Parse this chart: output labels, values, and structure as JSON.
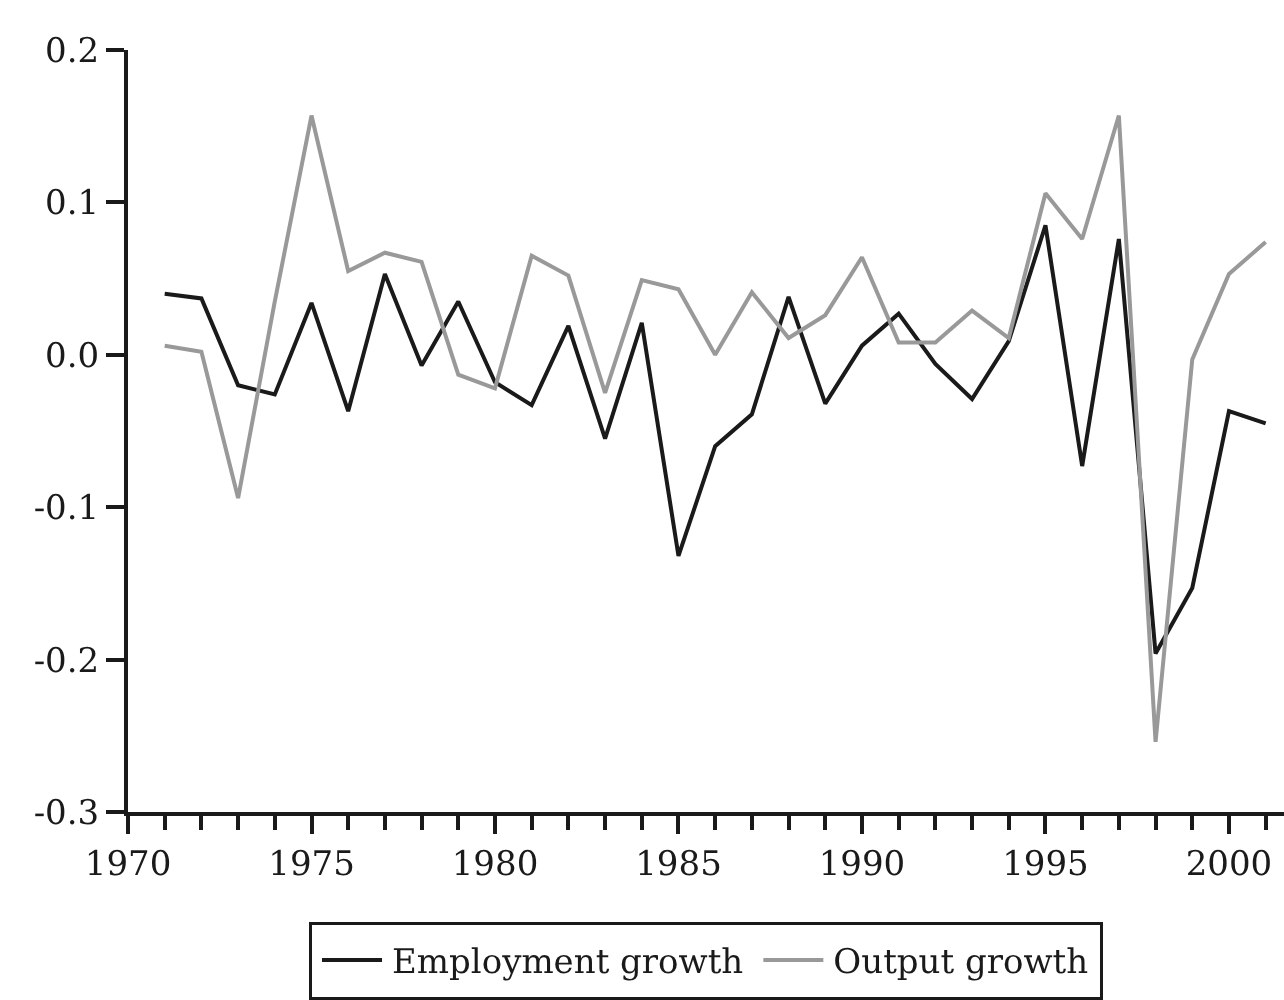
{
  "chart_data": {
    "type": "line",
    "x": [
      1971,
      1972,
      1973,
      1974,
      1975,
      1976,
      1977,
      1978,
      1979,
      1980,
      1981,
      1982,
      1983,
      1984,
      1985,
      1986,
      1987,
      1988,
      1989,
      1990,
      1991,
      1992,
      1993,
      1994,
      1995,
      1996,
      1997,
      1998,
      1999,
      2000,
      2001
    ],
    "series": [
      {
        "name": "Employment growth",
        "color": "#1a1a1a",
        "values": [
          0.04,
          0.037,
          -0.02,
          -0.026,
          0.034,
          -0.037,
          0.053,
          -0.007,
          0.035,
          -0.018,
          -0.033,
          0.019,
          -0.055,
          0.021,
          -0.132,
          -0.06,
          -0.039,
          0.038,
          -0.032,
          0.006,
          0.027,
          -0.006,
          -0.029,
          0.009,
          0.085,
          -0.073,
          0.076,
          -0.196,
          -0.153,
          -0.037,
          -0.045
        ]
      },
      {
        "name": "Output growth",
        "color": "#999999",
        "values": [
          0.006,
          0.002,
          -0.094,
          0.035,
          0.157,
          0.055,
          0.067,
          0.061,
          -0.013,
          -0.022,
          0.065,
          0.052,
          -0.025,
          0.049,
          0.043,
          0.0,
          0.041,
          0.011,
          0.026,
          0.064,
          0.008,
          0.008,
          0.029,
          0.011,
          0.106,
          0.076,
          0.157,
          -0.254,
          -0.003,
          0.053,
          0.074
        ]
      }
    ],
    "xlim": [
      1970,
      2001.5
    ],
    "xticks": [
      1970,
      {
        "value": 1971,
        "label": null
      },
      {
        "value": 1972,
        "label": null
      },
      {
        "value": 1973,
        "label": null
      },
      {
        "value": 1974,
        "label": null
      },
      1975,
      {
        "value": 1976,
        "label": null
      },
      {
        "value": 1977,
        "label": null
      },
      {
        "value": 1978,
        "label": null
      },
      {
        "value": 1979,
        "label": null
      },
      1980,
      {
        "value": 1981,
        "label": null
      },
      {
        "value": 1982,
        "label": null
      },
      {
        "value": 1983,
        "label": null
      },
      {
        "value": 1984,
        "label": null
      },
      1985,
      {
        "value": 1986,
        "label": null
      },
      {
        "value": 1987,
        "label": null
      },
      {
        "value": 1988,
        "label": null
      },
      {
        "value": 1989,
        "label": null
      },
      1990,
      {
        "value": 1991,
        "label": null
      },
      {
        "value": 1992,
        "label": null
      },
      {
        "value": 1993,
        "label": null
      },
      {
        "value": 1994,
        "label": null
      },
      1995,
      {
        "value": 1996,
        "label": null
      },
      {
        "value": 1997,
        "label": null
      },
      {
        "value": 1998,
        "label": null
      },
      {
        "value": 1999,
        "label": null
      },
      2000,
      {
        "value": 2001,
        "label": null
      }
    ],
    "ylim": [
      -0.3,
      0.2
    ],
    "yticks": [
      -0.3,
      -0.2,
      -0.1,
      {
        "value": 0,
        "label": "0.0"
      },
      0.1,
      0.2
    ],
    "grid": false,
    "legend": "bottom",
    "marker": "none",
    "line_style": "solid"
  }
}
